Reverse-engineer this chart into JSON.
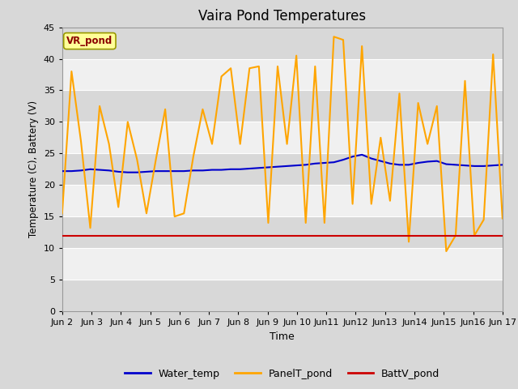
{
  "title": "Vaira Pond Temperatures",
  "xlabel": "Time",
  "ylabel": "Temperature (C), Battery (V)",
  "site_label": "VR_pond",
  "ylim": [
    0,
    45
  ],
  "yticks": [
    0,
    5,
    10,
    15,
    20,
    25,
    30,
    35,
    40,
    45
  ],
  "xtick_labels": [
    "Jun 2",
    "Jun 3",
    "Jun 4",
    "Jun 5",
    "Jun 6",
    "Jun 7",
    "Jun 8",
    "Jun 9",
    "Jun 10",
    "Jun11",
    "Jun12",
    "Jun13",
    "Jun14",
    "Jun15",
    "Jun16",
    "Jun 17"
  ],
  "legend_labels": [
    "Water_temp",
    "PanelT_pond",
    "BattV_pond"
  ],
  "legend_colors": [
    "#0000cc",
    "#FFA500",
    "#cc0000"
  ],
  "fig_bg_color": "#d8d8d8",
  "plot_bg_color": "#e8e8e8",
  "band_color_dark": "#d8d8d8",
  "band_color_light": "#f0f0f0",
  "grid_color": "#ffffff",
  "water_temp": [
    22.2,
    22.2,
    22.3,
    22.5,
    22.4,
    22.3,
    22.1,
    22.0,
    22.0,
    22.1,
    22.2,
    22.2,
    22.2,
    22.2,
    22.3,
    22.3,
    22.4,
    22.4,
    22.5,
    22.5,
    22.6,
    22.7,
    22.8,
    22.9,
    23.0,
    23.1,
    23.2,
    23.4,
    23.5,
    23.6,
    24.0,
    24.5,
    24.8,
    24.2,
    23.8,
    23.4,
    23.2,
    23.2,
    23.5,
    23.7,
    23.8,
    23.3,
    23.2,
    23.1,
    23.0,
    23.0,
    23.1,
    23.2
  ],
  "panel_temp": [
    15.5,
    38.0,
    27.0,
    13.2,
    32.5,
    26.5,
    16.5,
    30.0,
    24.0,
    15.5,
    24.0,
    32.0,
    15.0,
    15.5,
    24.5,
    32.0,
    26.5,
    37.2,
    38.5,
    26.5,
    38.5,
    38.8,
    14.0,
    38.8,
    26.5,
    40.5,
    14.0,
    38.8,
    14.0,
    43.5,
    43.0,
    17.0,
    42.0,
    17.0,
    27.5,
    17.5,
    34.5,
    11.0,
    33.0,
    26.5,
    32.5,
    9.5,
    12.0,
    36.5,
    12.0,
    14.5,
    40.7,
    14.7
  ],
  "batt_volt": [
    12.0,
    12.0,
    12.0,
    12.0,
    12.0,
    12.0,
    12.0,
    12.0,
    12.0,
    12.0,
    12.0,
    12.0,
    12.0,
    12.0,
    12.0,
    12.0,
    12.0,
    12.0,
    12.0,
    12.0,
    12.0,
    12.0,
    12.0,
    12.0,
    12.0,
    12.0,
    12.0,
    12.0,
    12.0,
    12.0,
    12.0,
    12.0,
    12.0,
    12.0,
    12.0,
    12.0,
    12.0,
    12.0,
    12.0,
    12.0,
    12.0,
    12.0,
    12.0,
    12.0,
    12.0,
    12.0,
    12.0,
    12.0
  ]
}
